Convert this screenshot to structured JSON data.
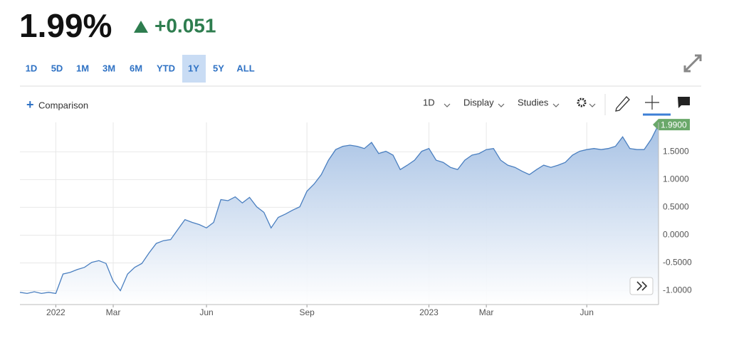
{
  "header": {
    "price": "1.99%",
    "change": "+0.051"
  },
  "ranges": [
    "1D",
    "5D",
    "1M",
    "3M",
    "6M",
    "YTD",
    "1Y",
    "5Y",
    "ALL"
  ],
  "active_range": "1Y",
  "toolbar": {
    "comparison": "Comparison",
    "interval": "1D",
    "display": "Display",
    "studies": "Studies"
  },
  "chart_data": {
    "type": "area",
    "categories": [
      null,
      null,
      null,
      null,
      null,
      "2022",
      null,
      null,
      null,
      null,
      null,
      null,
      null,
      "Mar",
      null,
      null,
      null,
      null,
      null,
      null,
      null,
      null,
      null,
      null,
      null,
      null,
      "Jun",
      null,
      null,
      null,
      null,
      null,
      null,
      null,
      null,
      null,
      null,
      null,
      null,
      null,
      "Sep",
      null,
      null,
      null,
      null,
      null,
      null,
      null,
      null,
      null,
      null,
      null,
      null,
      null,
      null,
      null,
      null,
      "2023",
      null,
      null,
      null,
      null,
      null,
      null,
      null,
      "Mar",
      null,
      null,
      null,
      null,
      null,
      null,
      null,
      null,
      null,
      null,
      null,
      null,
      null,
      "Jun",
      null,
      null,
      null,
      null,
      null,
      null,
      null,
      null,
      null,
      null
    ],
    "values": [
      -1.03,
      -1.05,
      -1.02,
      -1.05,
      -1.03,
      -1.05,
      -0.7,
      -0.67,
      -0.62,
      -0.58,
      -0.49,
      -0.46,
      -0.51,
      -0.83,
      -1.0,
      -0.7,
      -0.58,
      -0.51,
      -0.32,
      -0.15,
      -0.1,
      -0.08,
      0.1,
      0.28,
      0.23,
      0.19,
      0.13,
      0.23,
      0.64,
      0.62,
      0.69,
      0.58,
      0.68,
      0.51,
      0.41,
      0.13,
      0.32,
      0.38,
      0.45,
      0.51,
      0.79,
      0.92,
      1.09,
      1.35,
      1.54,
      1.6,
      1.62,
      1.6,
      1.56,
      1.67,
      1.47,
      1.51,
      1.44,
      1.18,
      1.26,
      1.35,
      1.51,
      1.56,
      1.35,
      1.31,
      1.22,
      1.18,
      1.35,
      1.44,
      1.47,
      1.54,
      1.56,
      1.35,
      1.26,
      1.22,
      1.15,
      1.09,
      1.18,
      1.26,
      1.22,
      1.26,
      1.31,
      1.44,
      1.51,
      1.54,
      1.56,
      1.54,
      1.56,
      1.6,
      1.77,
      1.56,
      1.54,
      1.54,
      1.73,
      1.99
    ],
    "last_value_label": "1.9900",
    "color": "#4a7fc0",
    "ylim": [
      -1.25,
      2.03
    ],
    "yticks": [
      {
        "value": -1.0,
        "label": "-1.0000"
      },
      {
        "value": -0.5,
        "label": "-0.5000"
      },
      {
        "value": 0,
        "label": "0.0000"
      },
      {
        "value": 0.5,
        "label": "0.5000"
      },
      {
        "value": 1.0,
        "label": "1.0000"
      },
      {
        "value": 1.5,
        "label": "1.5000"
      }
    ],
    "grid": true
  }
}
